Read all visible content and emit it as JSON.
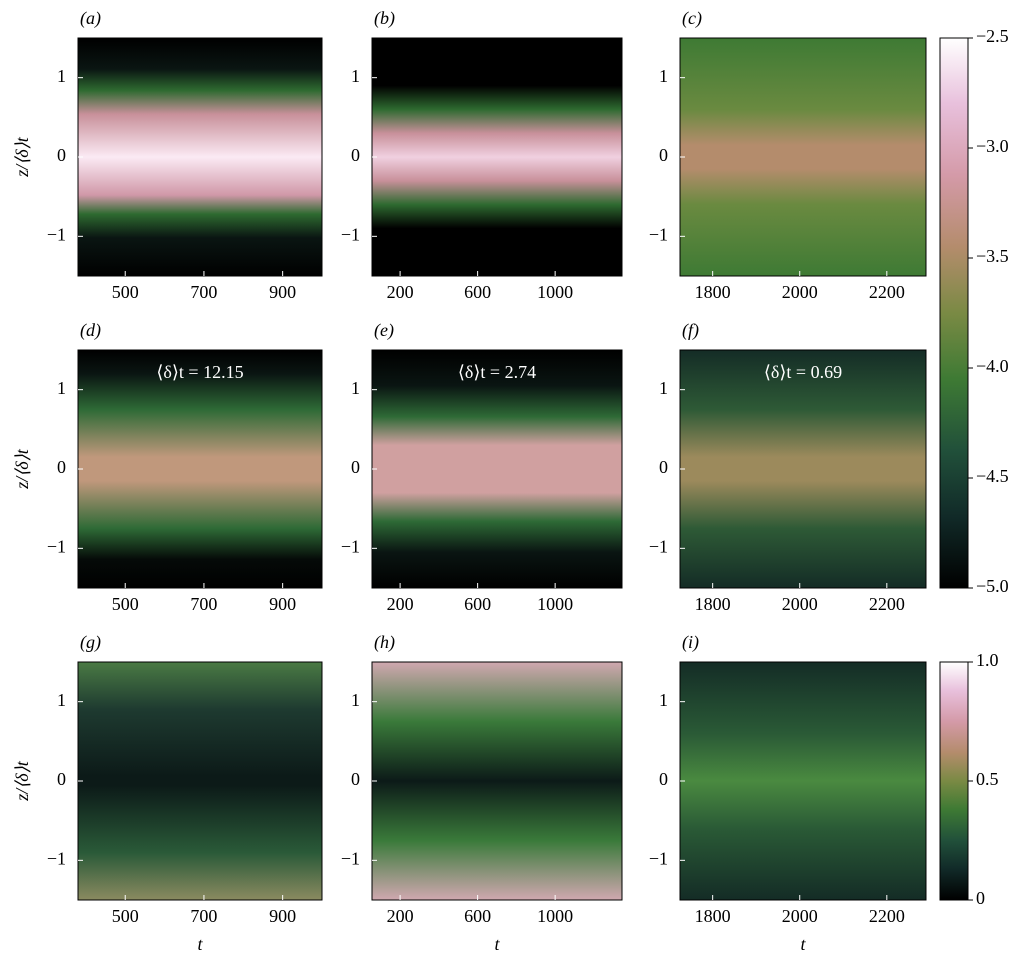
{
  "chart_data": [
    {
      "type": "heatmap",
      "label": "(a)",
      "ylabel": "z/⟨δ⟩t",
      "xlim": [
        380,
        1000
      ],
      "xticks": [
        500,
        700,
        900
      ],
      "ylim": [
        -1.5,
        1.5
      ],
      "yticks": [
        {
          "value": -1,
          "label": "−1"
        },
        0,
        1
      ]
    },
    {
      "type": "heatmap",
      "label": "(b)",
      "xlim": [
        55,
        1345
      ],
      "xticks": [
        200,
        600,
        1000
      ],
      "ylim": [
        -1.5,
        1.5
      ],
      "yticks": [
        {
          "value": -1,
          "label": "−1"
        },
        0,
        1
      ]
    },
    {
      "type": "heatmap",
      "label": "(c)",
      "xlim": [
        1725,
        2290
      ],
      "xticks": [
        1800,
        2000,
        2200
      ],
      "ylim": [
        -1.5,
        1.5
      ],
      "yticks": [
        {
          "value": -1,
          "label": "−1"
        },
        0,
        1
      ]
    },
    {
      "type": "heatmap",
      "label": "(d)",
      "ylabel": "z/⟨δ⟩t",
      "annotation": "⟨δ⟩t = 12.15",
      "xlim": [
        380,
        1000
      ],
      "xticks": [
        500,
        700,
        900
      ],
      "ylim": [
        -1.5,
        1.5
      ],
      "yticks": [
        {
          "value": -1,
          "label": "−1"
        },
        0,
        1
      ]
    },
    {
      "type": "heatmap",
      "label": "(e)",
      "annotation": "⟨δ⟩t = 2.74",
      "xlim": [
        55,
        1345
      ],
      "xticks": [
        200,
        600,
        1000
      ],
      "ylim": [
        -1.5,
        1.5
      ],
      "yticks": [
        {
          "value": -1,
          "label": "−1"
        },
        0,
        1
      ]
    },
    {
      "type": "heatmap",
      "label": "(f)",
      "annotation": "⟨δ⟩t = 0.69",
      "xlim": [
        1725,
        2290
      ],
      "xticks": [
        1800,
        2000,
        2200
      ],
      "ylim": [
        -1.5,
        1.5
      ],
      "yticks": [
        {
          "value": -1,
          "label": "−1"
        },
        0,
        1
      ]
    },
    {
      "type": "heatmap",
      "label": "(g)",
      "ylabel": "z/⟨δ⟩t",
      "xlabel": "t",
      "xlim": [
        380,
        1000
      ],
      "xticks": [
        500,
        700,
        900
      ],
      "ylim": [
        -1.5,
        1.5
      ],
      "yticks": [
        {
          "value": -1,
          "label": "−1"
        },
        0,
        1
      ]
    },
    {
      "type": "heatmap",
      "label": "(h)",
      "xlabel": "t",
      "xlim": [
        55,
        1345
      ],
      "xticks": [
        200,
        600,
        1000
      ],
      "ylim": [
        -1.5,
        1.5
      ],
      "yticks": [
        {
          "value": -1,
          "label": "−1"
        },
        0,
        1
      ]
    },
    {
      "type": "heatmap",
      "label": "(i)",
      "xlabel": "t",
      "xlim": [
        1725,
        2290
      ],
      "xticks": [
        1800,
        2000,
        2200
      ],
      "ylim": [
        -1.5,
        1.5
      ],
      "yticks": [
        {
          "value": -1,
          "label": "−1"
        },
        0,
        1
      ]
    },
    {
      "type": "colorbar",
      "ylim": [
        -5,
        -2.5
      ],
      "yticks": [
        {
          "value": -5,
          "label": "−5.0"
        },
        {
          "value": -4.5,
          "label": "−4.5"
        },
        {
          "value": -4,
          "label": "−4.0"
        },
        {
          "value": -3.5,
          "label": "−3.5"
        },
        {
          "value": -3,
          "label": "−3.0"
        },
        {
          "value": -2.5,
          "label": "−2.5"
        }
      ]
    },
    {
      "type": "colorbar",
      "ylim": [
        0,
        1
      ],
      "yticks": [
        0,
        0.5,
        {
          "value": 1,
          "label": "1.0"
        }
      ]
    }
  ]
}
